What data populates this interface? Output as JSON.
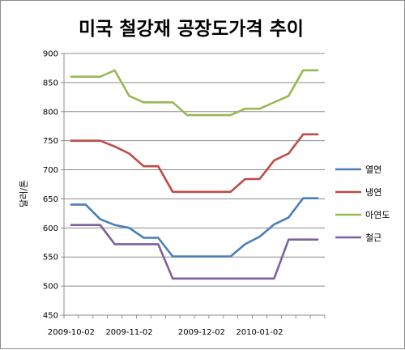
{
  "chart_data": {
    "type": "line",
    "title": "미국 철강재 공장도가격 추이",
    "ylabel": "달러/톤",
    "xlabel": "",
    "ylim": [
      450,
      900
    ],
    "yticks": [
      450,
      500,
      550,
      600,
      650,
      700,
      750,
      800,
      850,
      900
    ],
    "xtick_labels": [
      "2009-10-02",
      "2009-11-02",
      "2009-12-02",
      "2010-01-02"
    ],
    "grid": "horizontal",
    "legend_position": "right",
    "categories": [
      "2009-10-02",
      "2009-10-09",
      "2009-10-16",
      "2009-10-23",
      "2009-10-30",
      "2009-11-06",
      "2009-11-13",
      "2009-11-20",
      "2009-11-27",
      "2009-12-04",
      "2009-12-11",
      "2009-12-18",
      "2009-12-25",
      "2010-01-01",
      "2010-01-08",
      "2010-01-15",
      "2010-01-22",
      "2010-01-29"
    ],
    "series": [
      {
        "name": "열연",
        "color": "#4a7ebb",
        "values": [
          640,
          640,
          615,
          605,
          600,
          583,
          583,
          551,
          551,
          551,
          551,
          551,
          572,
          585,
          606,
          618,
          651,
          651
        ]
      },
      {
        "name": "냉연",
        "color": "#be4b48",
        "values": [
          750,
          750,
          750,
          740,
          728,
          706,
          706,
          662,
          662,
          662,
          662,
          662,
          684,
          684,
          716,
          728,
          761,
          761
        ]
      },
      {
        "name": "아연도",
        "color": "#98b954",
        "values": [
          860,
          860,
          860,
          871,
          827,
          816,
          816,
          816,
          794,
          794,
          794,
          794,
          805,
          805,
          816,
          827,
          871,
          871
        ]
      },
      {
        "name": "철근",
        "color": "#7d60a0",
        "values": [
          605,
          605,
          605,
          572,
          572,
          572,
          572,
          513,
          513,
          513,
          513,
          513,
          513,
          513,
          513,
          580,
          580,
          580
        ]
      }
    ]
  }
}
